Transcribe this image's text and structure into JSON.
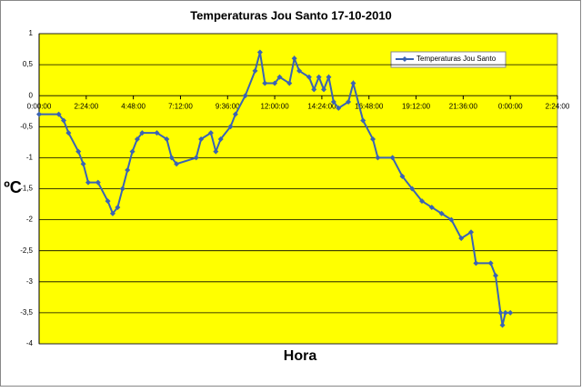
{
  "chart_data": {
    "type": "line",
    "title": "Temperaturas Jou Santo 17-10-2010",
    "x_label": "Hora",
    "y_label": "ºC",
    "x": [
      0,
      1,
      1.25,
      1.5,
      2,
      2.25,
      2.5,
      3,
      3.5,
      3.75,
      4,
      4.25,
      4.5,
      4.75,
      5,
      5.25,
      6,
      6.5,
      6.75,
      7,
      8,
      8.25,
      8.75,
      9,
      9.25,
      9.75,
      10,
      10.5,
      11,
      11.25,
      11.5,
      12,
      12.25,
      12.75,
      13,
      13.25,
      13.75,
      14,
      14.25,
      14.5,
      14.75,
      15,
      15.25,
      15.75,
      16,
      16.5,
      17,
      17.25,
      18,
      18.5,
      19,
      19.5,
      20,
      20.5,
      21,
      21.5,
      22,
      22.25,
      23,
      23.25,
      23.5,
      23.6,
      23.75,
      24
    ],
    "series": [
      {
        "name": "Temperaturas Jou Santo",
        "color": "#3a63b4",
        "values": [
          -0.3,
          -0.3,
          -0.4,
          -0.6,
          -0.9,
          -1.1,
          -1.4,
          -1.4,
          -1.7,
          -1.9,
          -1.8,
          -1.5,
          -1.2,
          -0.9,
          -0.7,
          -0.6,
          -0.6,
          -0.7,
          -1.0,
          -1.1,
          -1.0,
          -0.7,
          -0.6,
          -0.9,
          -0.7,
          -0.5,
          -0.3,
          0,
          0.4,
          0.7,
          0.2,
          0.2,
          0.3,
          0.2,
          0.6,
          0.4,
          0.3,
          0.1,
          0.3,
          0.1,
          0.3,
          -0.1,
          -0.2,
          -0.1,
          0.2,
          -0.4,
          -0.7,
          -1.0,
          -1.0,
          -1.3,
          -1.5,
          -1.7,
          -1.8,
          -1.9,
          -2.0,
          -2.3,
          -2.2,
          -2.7,
          -2.7,
          -2.9,
          -3.5,
          -3.7,
          -3.5,
          -3.5
        ]
      }
    ],
    "xlim": [
      0,
      26.4
    ],
    "xticks": [
      {
        "value": 0,
        "label": "0:00:00"
      },
      {
        "value": 2.4,
        "label": "2:24:00"
      },
      {
        "value": 4.8,
        "label": "4:48:00"
      },
      {
        "value": 7.2,
        "label": "7:12:00"
      },
      {
        "value": 9.6,
        "label": "9:36:00"
      },
      {
        "value": 12,
        "label": "12:00:00"
      },
      {
        "value": 14.4,
        "label": "14:24:00"
      },
      {
        "value": 16.8,
        "label": "16:48:00"
      },
      {
        "value": 19.2,
        "label": "19:12:00"
      },
      {
        "value": 21.6,
        "label": "21:36:00"
      },
      {
        "value": 24,
        "label": "0:00:00"
      },
      {
        "value": 26.4,
        "label": "2:24:00"
      }
    ],
    "ylim": [
      -4,
      1
    ],
    "yticks": [
      -4,
      {
        "value": -3.5,
        "label": "-3,5"
      },
      -3,
      {
        "value": -2.5,
        "label": "-2,5"
      },
      -2,
      {
        "value": -1.5,
        "label": "-1,5"
      },
      -1,
      {
        "value": -0.5,
        "label": "-0,5"
      },
      0,
      {
        "value": 0.5,
        "label": "0,5"
      },
      1
    ],
    "grid": true,
    "plot_background": "#ffff00"
  }
}
